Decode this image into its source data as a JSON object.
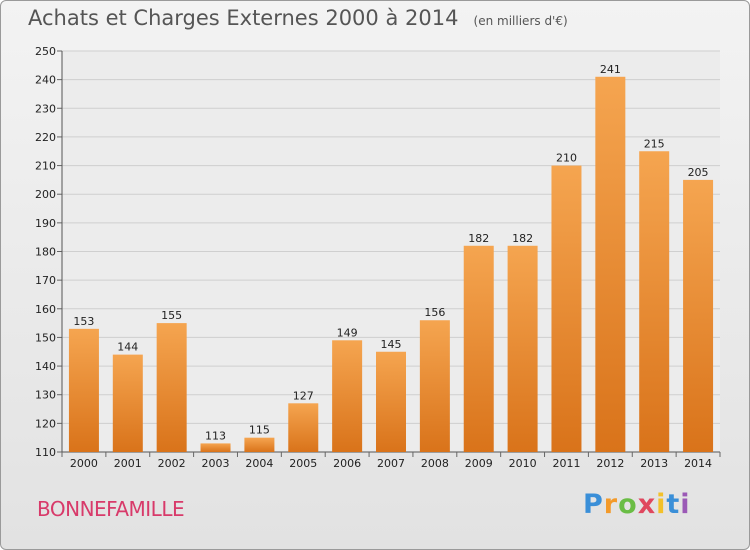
{
  "title": "Achats et Charges Externes 2000 à 2014",
  "unit": "(en milliers d'€)",
  "commune": "BONNEFAMILLE",
  "logo": "Proxiti",
  "colors": {
    "bar_top": "#f5a550",
    "bar_bottom": "#d9731a",
    "commune": "#d83a6a"
  },
  "chart_data": {
    "type": "bar",
    "title": "Achats et Charges Externes 2000 à 2014",
    "subtitle": "(en milliers d'€)",
    "xlabel": "",
    "ylabel": "",
    "categories": [
      "2000",
      "2001",
      "2002",
      "2003",
      "2004",
      "2005",
      "2006",
      "2007",
      "2008",
      "2009",
      "2010",
      "2011",
      "2012",
      "2013",
      "2014"
    ],
    "values": [
      153,
      144,
      155,
      113,
      115,
      127,
      149,
      145,
      156,
      182,
      182,
      210,
      241,
      215,
      205
    ],
    "ylim": [
      110,
      250
    ],
    "yticks": [
      110,
      120,
      130,
      140,
      150,
      160,
      170,
      180,
      190,
      200,
      210,
      220,
      230,
      240,
      250
    ],
    "grid": true,
    "legend": "none"
  }
}
